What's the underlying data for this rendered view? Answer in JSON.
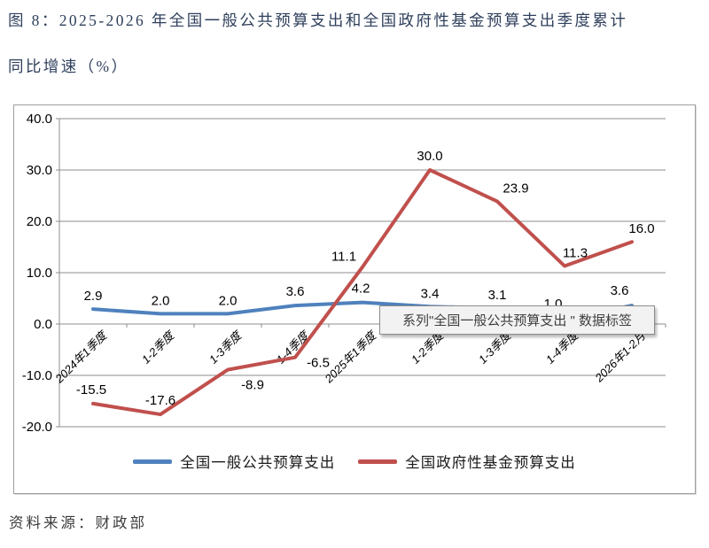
{
  "title": {
    "line1": "图 8：2025-2026 年全国一般公共预算支出和全国政府性基金预算支出季度累计",
    "line2": "同比增速（%）"
  },
  "source": "资料来源：财政部",
  "tooltip": {
    "text": "系列\"全国一般公共预算支出 \" 数据标签"
  },
  "colors": {
    "blue": "#4F81BD",
    "red": "#C0504D",
    "grid": "#8C8C8C",
    "axis": "#8C8C8C",
    "title_text": "#2F3F5C",
    "tooltip_bg": "#F2F2F2",
    "tooltip_border": "#8C8C8C"
  },
  "chart_data": {
    "type": "line",
    "categories": [
      "2024年1季度",
      "1-2季度",
      "1-3季度",
      "1-4季度",
      "2025年1季度",
      "1-2季度",
      "1-3季度",
      "1-4季度",
      "2026年1-2月"
    ],
    "series": [
      {
        "name": "全国一般公共预算支出",
        "color": "#4F81BD",
        "values": [
          2.9,
          2.0,
          2.0,
          3.6,
          4.2,
          3.4,
          3.1,
          1.0,
          3.6
        ],
        "label_offsets": [
          [
            0,
            -10
          ],
          [
            0,
            -10
          ],
          [
            0,
            -10
          ],
          [
            0,
            -11
          ],
          [
            -2,
            -11
          ],
          [
            0,
            -10
          ],
          [
            0,
            -10
          ],
          [
            -13,
            -12
          ],
          [
            -14,
            -12
          ]
        ]
      },
      {
        "name": "全国政府性基金预算支出",
        "color": "#C0504D",
        "values": [
          -15.5,
          -17.6,
          -8.9,
          -6.5,
          11.1,
          30.0,
          23.9,
          11.3,
          16.0
        ],
        "label_offsets": [
          [
            -2,
            -11
          ],
          [
            0,
            -11
          ],
          [
            28,
            22
          ],
          [
            26,
            11
          ],
          [
            -21,
            -7
          ],
          [
            0,
            -11
          ],
          [
            21,
            -10
          ],
          [
            12,
            -10
          ],
          [
            11,
            -10
          ]
        ]
      }
    ],
    "title": "图 8：2025-2026 年全国一般公共预算支出和全国政府性基金预算支出季度累计同比增速（%）",
    "xlabel": "",
    "ylabel": "",
    "ylim": [
      -20,
      40
    ],
    "ytick_step": 10,
    "ytick_format": "one-decimal",
    "grid": true,
    "legend_position": "bottom"
  }
}
